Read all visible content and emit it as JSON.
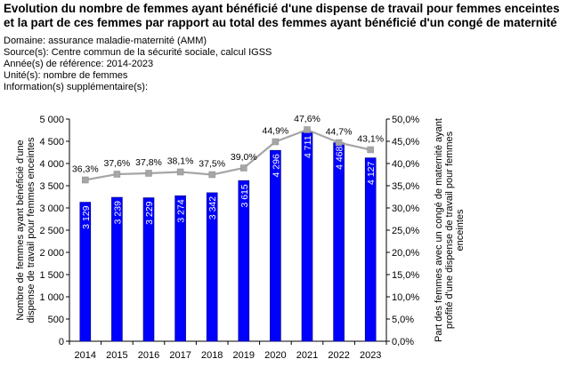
{
  "header": {
    "title": "Evolution du nombre de femmes ayant bénéficié d'une dispense de travail pour femmes enceintes et la part de ces femmes par rapport au total des femmes ayant bénéficié d'un congé de maternité",
    "domaine": "Domaine: assurance maladie-maternité (AMM)",
    "source": "Source(s): Centre commun de la sécurité sociale, calcul IGSS",
    "annee": "Année(s) de référence: 2014-2023",
    "unite": "Unité(s): nombre de femmes",
    "info": "Information(s) supplémentaire(s):"
  },
  "colors": {
    "bar": "#0000ff",
    "bar_edge": "#000080",
    "line": "#a6a6a6",
    "marker": "#a6a6a6"
  },
  "chart_data": {
    "type": "bar+line",
    "categories": [
      "2014",
      "2015",
      "2016",
      "2017",
      "2018",
      "2019",
      "2020",
      "2021",
      "2022",
      "2023"
    ],
    "series": [
      {
        "name": "Nombre de femmes ayant bénéficié d'une dispense de travail pour femmes enceintes",
        "axis": "left",
        "kind": "bar",
        "values": [
          3129,
          3239,
          3229,
          3274,
          3342,
          3615,
          4296,
          4711,
          4468,
          4127
        ],
        "labels": [
          "3 129",
          "3 239",
          "3 229",
          "3 274",
          "3 342",
          "3 615",
          "4 296",
          "4 711",
          "4 468",
          "4 127"
        ]
      },
      {
        "name": "Part des femmes avec un congé de maternité ayant profité d'une dispense de travail pour femmes enceintes",
        "axis": "right",
        "kind": "line",
        "values": [
          36.3,
          37.6,
          37.8,
          38.1,
          37.5,
          39.0,
          44.9,
          47.6,
          44.7,
          43.1
        ],
        "labels": [
          "36,3%",
          "37,6%",
          "37,8%",
          "38,1%",
          "37,5%",
          "39,0%",
          "44,9%",
          "47,6%",
          "44,7%",
          "43,1%"
        ]
      }
    ],
    "y_left": {
      "label": "Nombre de femmes ayant bénéficié d'une dispense de travail pour femmes enceintes",
      "min": 0,
      "max": 5000,
      "step": 500,
      "ticks": [
        "0",
        "500",
        "1 000",
        "1 500",
        "2 000",
        "2 500",
        "3 000",
        "3 500",
        "4 000",
        "4 500",
        "5 000"
      ]
    },
    "y_right": {
      "label": "Part des femmes avec un congé de maternité ayant profité d'une dispense de travail pour femmes enceintes",
      "min": 0,
      "max": 50,
      "step": 5,
      "ticks": [
        "0,0%",
        "5,0%",
        "10,0%",
        "15,0%",
        "20,0%",
        "25,0%",
        "30,0%",
        "35,0%",
        "40,0%",
        "45,0%",
        "50,0%"
      ]
    },
    "grid": false,
    "legend": "none"
  }
}
